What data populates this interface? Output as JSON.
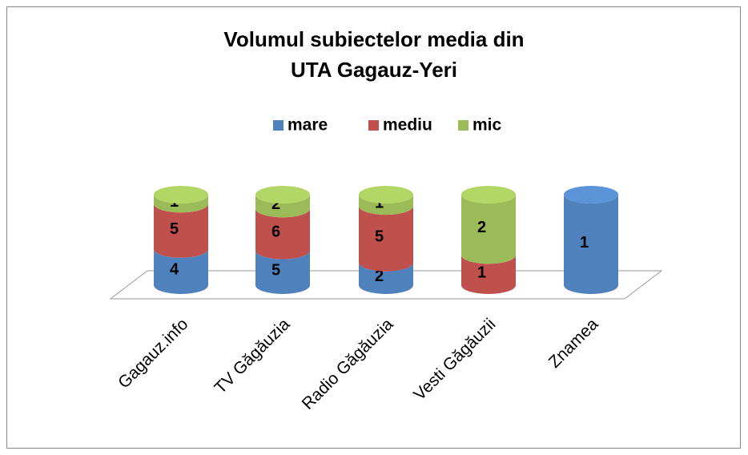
{
  "chart_data": {
    "type": "stacked_cylinder",
    "title": "Volumul subiectelor media din UTA Gagauz-Yeri",
    "categories": [
      "Gagauz.info",
      "TV Găgăuzia",
      "Radio Găgăuzia",
      "Vesti Găgăuzii",
      "Znamea"
    ],
    "series": [
      {
        "name": "mare",
        "color": "#4f81bd",
        "values": [
          4,
          5,
          2,
          null,
          1
        ]
      },
      {
        "name": "mediu",
        "color": "#c0504d",
        "values": [
          5,
          6,
          5,
          1,
          null
        ]
      },
      {
        "name": "mic",
        "color": "#9bbb59",
        "values": [
          1,
          2,
          1,
          2,
          null
        ]
      }
    ],
    "legend": "top"
  }
}
